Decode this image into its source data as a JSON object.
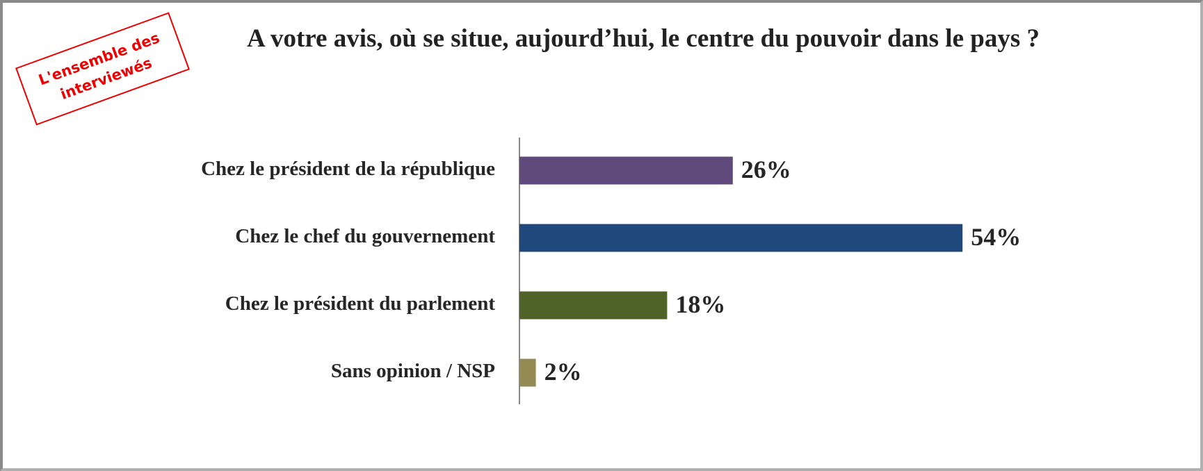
{
  "chart_data": {
    "type": "bar",
    "orientation": "horizontal",
    "title": "A votre avis, où se situe, aujourd’hui, le centre du pouvoir dans le pays ?",
    "annotation": [
      "L'ensemble des",
      "interviewés"
    ],
    "categories": [
      "Chez le président de la république",
      "Chez le chef du gouvernement",
      "Chez le président du parlement",
      "Sans opinion / NSP"
    ],
    "values": [
      26,
      54,
      18,
      2
    ],
    "value_labels": [
      "26%",
      "54%",
      "18%",
      "2%"
    ],
    "colors": [
      "#604a7b",
      "#1f497d",
      "#4f6228",
      "#948a54"
    ]
  }
}
